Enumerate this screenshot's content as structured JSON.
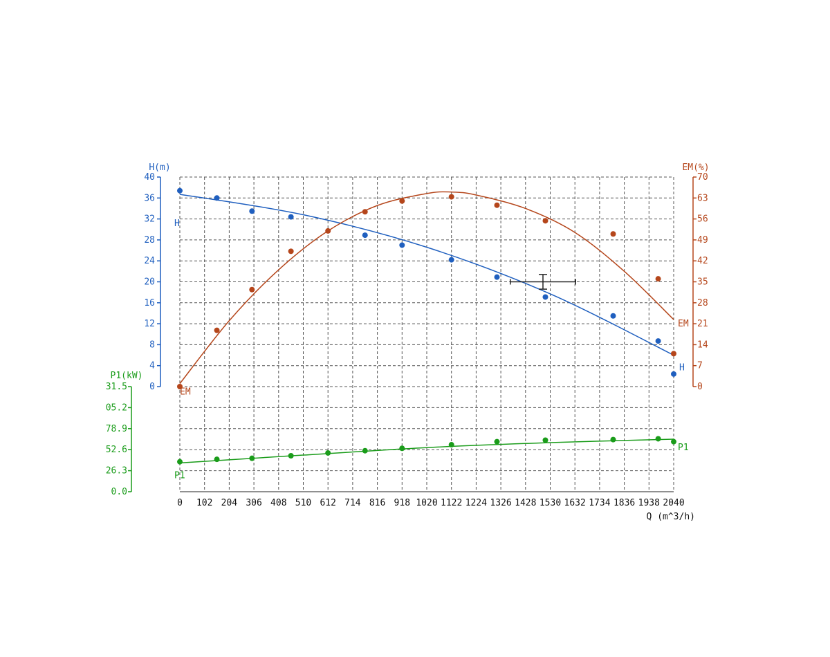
{
  "chart_data": {
    "type": "line",
    "title": "",
    "x_axis": {
      "label": "Q (m^3/h)",
      "range": [
        0,
        2040
      ],
      "ticks": [
        "0",
        "102",
        "204",
        "306",
        "408",
        "510",
        "612",
        "714",
        "816",
        "918",
        "1020",
        "1122",
        "1224",
        "1326",
        "1428",
        "1530",
        "1632",
        "1734",
        "1836",
        "1938",
        "2040"
      ]
    },
    "y_axes": {
      "H": {
        "label": "H(m)",
        "range": [
          0,
          40
        ],
        "ticks": [
          "0",
          "4",
          "8",
          "12",
          "16",
          "20",
          "24",
          "28",
          "32",
          "36",
          "40"
        ],
        "color": "#1f5fbf"
      },
      "EM": {
        "label": "EM(%)",
        "range": [
          0,
          70
        ],
        "ticks": [
          "0",
          "7",
          "14",
          "21",
          "28",
          "35",
          "42",
          "49",
          "56",
          "63",
          "70"
        ],
        "color": "#b5461b"
      },
      "P1": {
        "label": "P1(kW)",
        "range": [
          0,
          131.5
        ],
        "ticks": [
          "0.0",
          "26.3",
          "52.6",
          "78.9",
          "05.2",
          "31.5"
        ],
        "color": "#1a9c1a"
      }
    },
    "grid": true,
    "series": [
      {
        "name": "H",
        "axis": "H",
        "color": "#1f5fbf",
        "points": [
          [
            0,
            37.4
          ],
          [
            153,
            36.0
          ],
          [
            298,
            33.5
          ],
          [
            459,
            32.4
          ],
          [
            765,
            28.9
          ],
          [
            918,
            27.0
          ],
          [
            1122,
            24.2
          ],
          [
            1310,
            20.9
          ],
          [
            1510,
            17.1
          ],
          [
            1790,
            13.5
          ],
          [
            1976,
            8.7
          ],
          [
            2040,
            2.4
          ]
        ],
        "fit": [
          [
            0,
            36.7
          ],
          [
            510,
            32.8
          ],
          [
            1020,
            26.6
          ],
          [
            1530,
            17.7
          ],
          [
            2040,
            6.0
          ]
        ],
        "end_label": "H",
        "start_label": "H"
      },
      {
        "name": "EM",
        "axis": "EM",
        "color": "#b5461b",
        "points": [
          [
            0,
            0
          ],
          [
            153,
            18.8
          ],
          [
            298,
            32.4
          ],
          [
            459,
            45.2
          ],
          [
            612,
            52.0
          ],
          [
            765,
            58.4
          ],
          [
            918,
            62.0
          ],
          [
            1122,
            63.4
          ],
          [
            1310,
            60.6
          ],
          [
            1510,
            55.4
          ],
          [
            1790,
            51.0
          ],
          [
            1976,
            36.0
          ],
          [
            2040,
            11.0
          ]
        ],
        "fit": [
          [
            0,
            1.0
          ],
          [
            204,
            22.0
          ],
          [
            408,
            39.0
          ],
          [
            612,
            52.0
          ],
          [
            816,
            60.5
          ],
          [
            1020,
            64.5
          ],
          [
            1122,
            65.0
          ],
          [
            1224,
            64.0
          ],
          [
            1428,
            59.5
          ],
          [
            1632,
            51.5
          ],
          [
            1836,
            38.5
          ],
          [
            2040,
            22.4
          ]
        ],
        "end_label": "EM",
        "start_label": "EM"
      },
      {
        "name": "P1",
        "axis": "P1",
        "color": "#1a9c1a",
        "points": [
          [
            0,
            37.5
          ],
          [
            153,
            40.5
          ],
          [
            298,
            41.8
          ],
          [
            459,
            45.0
          ],
          [
            612,
            48.5
          ],
          [
            765,
            51.3
          ],
          [
            918,
            54.3
          ],
          [
            1122,
            58.8
          ],
          [
            1310,
            62.6
          ],
          [
            1510,
            64.5
          ],
          [
            1790,
            65.2
          ],
          [
            1976,
            66.2
          ],
          [
            2040,
            62.6
          ]
        ],
        "fit": [
          [
            0,
            36.0
          ],
          [
            510,
            45.8
          ],
          [
            1020,
            55.2
          ],
          [
            1530,
            61.4
          ],
          [
            2040,
            65.8
          ]
        ],
        "end_label": "P1",
        "start_label": "P1"
      }
    ],
    "operating_point": {
      "q": 1500,
      "h": 20.0,
      "q_range": [
        1365,
        1635
      ],
      "h_range": [
        18.6,
        21.4
      ],
      "color": "#222222"
    }
  }
}
